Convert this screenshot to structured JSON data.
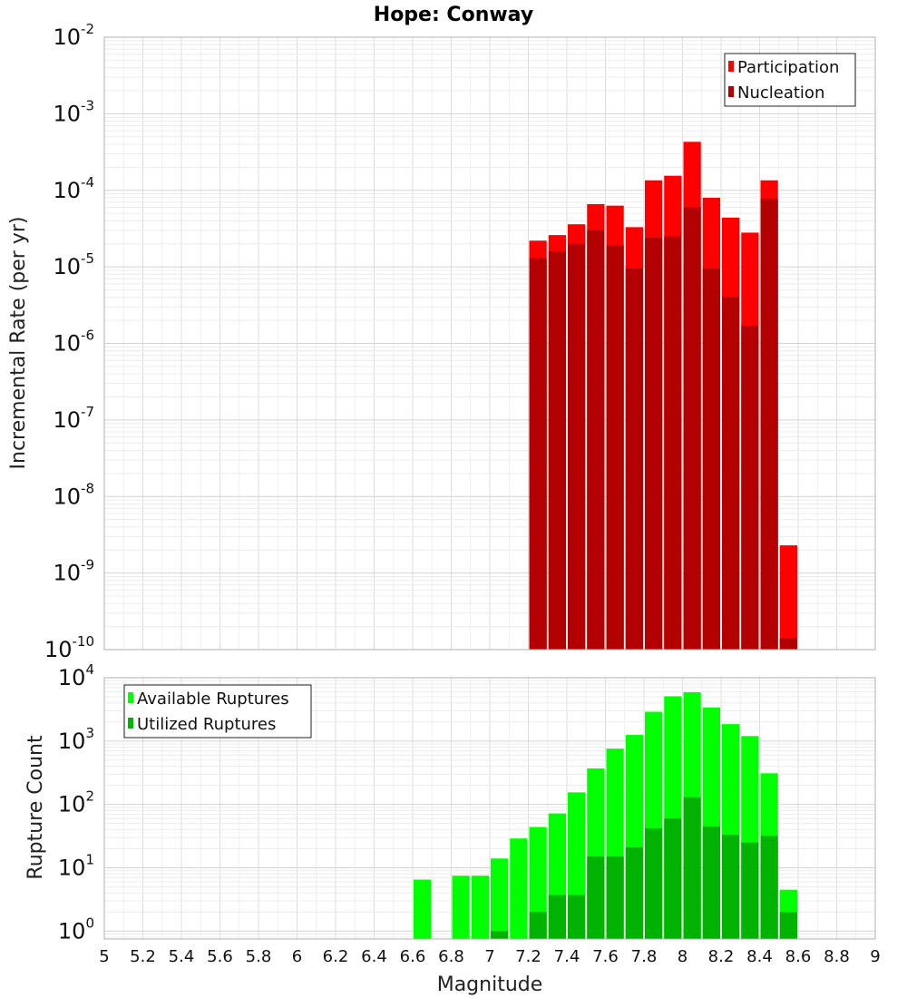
{
  "title": "Hope: Conway",
  "chart_data": [
    {
      "type": "bar",
      "ylabel": "Incremental Rate (per yr)",
      "yscale": "log",
      "ylim": [
        1e-10,
        0.01
      ],
      "xlim": [
        5,
        9
      ],
      "grid": true,
      "legend_placement": "top-right",
      "x": [
        7.25,
        7.35,
        7.45,
        7.55,
        7.65,
        7.75,
        7.85,
        7.95,
        8.05,
        8.15,
        8.25,
        8.35,
        8.45,
        8.55
      ],
      "series": [
        {
          "name": "Participation",
          "color": "#ff0000",
          "values": [
            2.2e-05,
            2.6e-05,
            3.6e-05,
            6.6e-05,
            6.3e-05,
            3.3e-05,
            0.000135,
            0.000155,
            0.00043,
            8e-05,
            4.4e-05,
            2.8e-05,
            0.000135,
            2.3e-09
          ]
        },
        {
          "name": "Nucleation",
          "color": "#b30000",
          "values": [
            1.3e-05,
            1.6e-05,
            2e-05,
            3e-05,
            1.9e-05,
            9.5e-06,
            2.4e-05,
            2.5e-05,
            6e-05,
            9.5e-06,
            4e-06,
            1.7e-06,
            7.8e-05,
            1.4e-10
          ]
        }
      ]
    },
    {
      "type": "bar",
      "ylabel": "Rupture Count",
      "xlabel": "Magnitude",
      "yscale": "log",
      "ylim": [
        0.75,
        10000
      ],
      "xlim": [
        5,
        9
      ],
      "grid": true,
      "legend_placement": "top-left",
      "x": [
        6.65,
        6.75,
        6.85,
        6.95,
        7.05,
        7.15,
        7.25,
        7.35,
        7.45,
        7.55,
        7.65,
        7.75,
        7.85,
        7.95,
        8.05,
        8.15,
        8.25,
        8.35,
        8.45,
        8.55
      ],
      "series": [
        {
          "name": "Available Ruptures",
          "color": "#00ff00",
          "values": [
            6.5,
            0,
            7.5,
            7.5,
            14,
            29,
            44,
            72,
            155,
            370,
            760,
            1250,
            2900,
            5100,
            5900,
            3400,
            1850,
            1200,
            310,
            4.5
          ]
        },
        {
          "name": "Utilized Ruptures",
          "color": "#00b300",
          "values": [
            0,
            0,
            0,
            0,
            1,
            0,
            2,
            3.7,
            3.7,
            15,
            15,
            21,
            42,
            60,
            130,
            45,
            33,
            25,
            32,
            2
          ]
        }
      ]
    }
  ],
  "axes": {
    "x_ticks": [
      "5",
      "5.2",
      "5.4",
      "5.6",
      "5.8",
      "6",
      "6.2",
      "6.4",
      "6.6",
      "6.8",
      "7",
      "7.2",
      "7.4",
      "7.6",
      "7.8",
      "8",
      "8.2",
      "8.4",
      "8.6",
      "8.8",
      "9"
    ],
    "top_y_ticks": [
      {
        "base": "10",
        "exp": "-10"
      },
      {
        "base": "10",
        "exp": "-9"
      },
      {
        "base": "10",
        "exp": "-8"
      },
      {
        "base": "10",
        "exp": "-7"
      },
      {
        "base": "10",
        "exp": "-6"
      },
      {
        "base": "10",
        "exp": "-5"
      },
      {
        "base": "10",
        "exp": "-4"
      },
      {
        "base": "10",
        "exp": "-3"
      },
      {
        "base": "10",
        "exp": "-2"
      }
    ],
    "bottom_y_ticks": [
      {
        "base": "10",
        "exp": "0"
      },
      {
        "base": "10",
        "exp": "1"
      },
      {
        "base": "10",
        "exp": "2"
      },
      {
        "base": "10",
        "exp": "3"
      },
      {
        "base": "10",
        "exp": "4"
      }
    ]
  }
}
